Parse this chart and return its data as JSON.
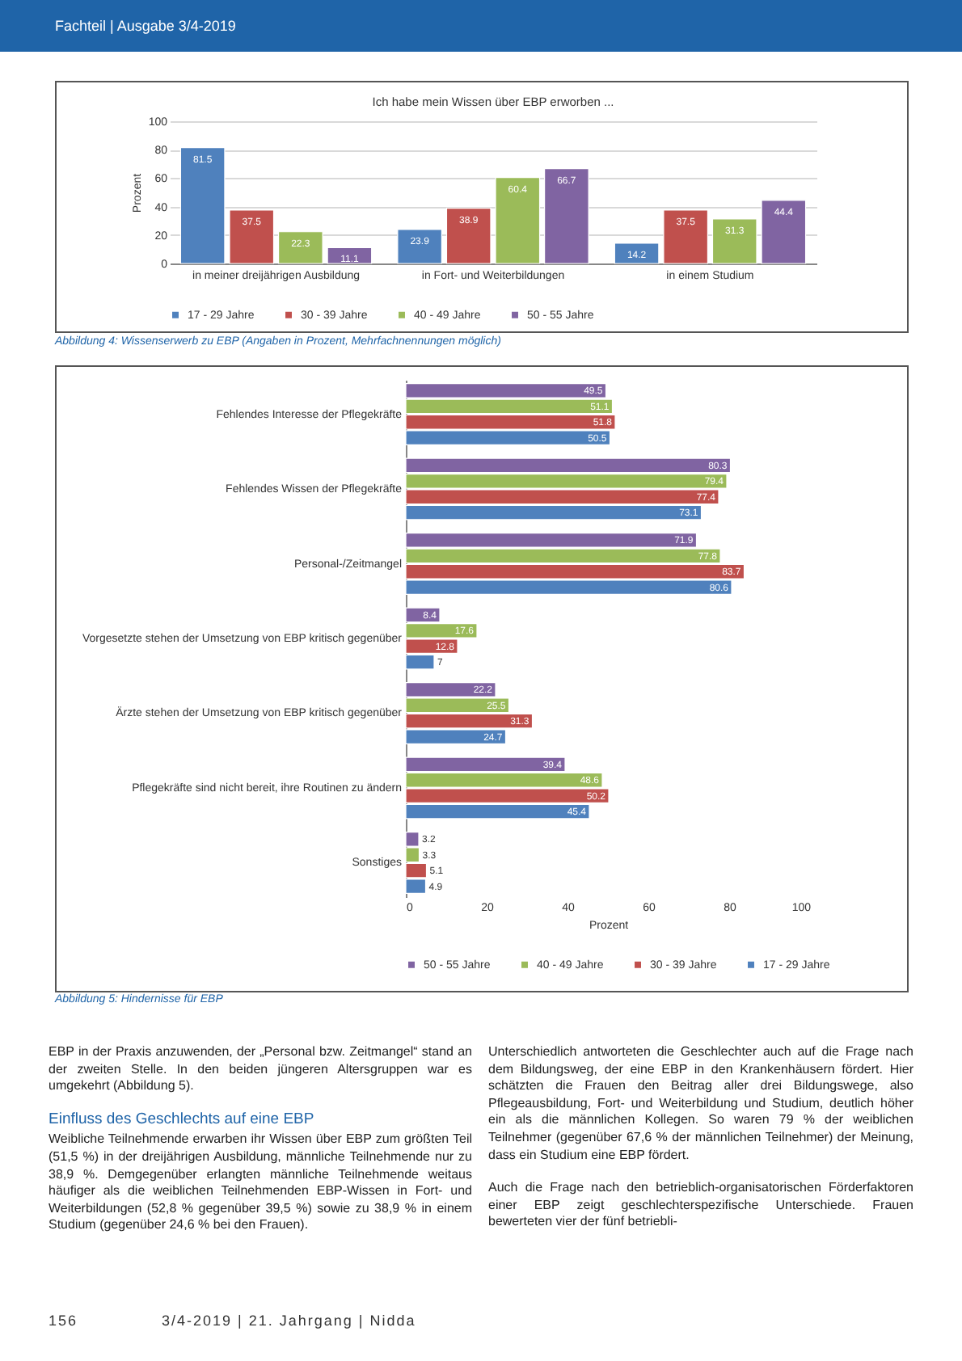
{
  "chart_data": [
    {
      "type": "bar",
      "title": "Ich habe mein Wissen über EBP erworben ...",
      "categories": [
        "in meiner dreijährigen Ausbildung",
        "in Fort- und Weiterbildungen",
        "in einem Studium"
      ],
      "ylabel": "Prozent",
      "ylim": [
        0,
        100
      ],
      "yticks": [
        0,
        20,
        40,
        60,
        80,
        100
      ],
      "grid": "y",
      "legend": "bottom",
      "data_labels": true,
      "series": [
        {
          "name": "17 - 29 Jahre",
          "color": "#4f81bd",
          "values": [
            81.5,
            23.9,
            14.2
          ]
        },
        {
          "name": "30 - 39 Jahre",
          "color": "#c0504d",
          "values": [
            37.5,
            38.9,
            37.5
          ]
        },
        {
          "name": "40 - 49 Jahre",
          "color": "#9bbb59",
          "values": [
            22.3,
            60.4,
            31.3
          ]
        },
        {
          "name": "50 - 55 Jahre",
          "color": "#8064a2",
          "values": [
            11.1,
            66.7,
            44.4
          ]
        }
      ],
      "annotations": [
        "Abbildung 4: Wissenserwerb zu EBP (Angaben in Prozent, Mehrfachnennungen möglich)"
      ]
    },
    {
      "type": "bar",
      "orientation": "horizontal",
      "categories": [
        "Fehlendes Interesse der Pflegekräfte",
        "Fehlendes Wissen der Pflegekräfte",
        "Personal-/Zeitmangel",
        "Vorgesetzte stehen der Umsetzung von EBP kritisch gegenüber",
        "Ärzte stehen der Umsetzung von EBP kritisch gegenüber",
        "Pflegekräfte sind nicht bereit, ihre Routinen zu ändern",
        "Sonstiges"
      ],
      "xlabel": "Prozent",
      "xlim": [
        0,
        100
      ],
      "xticks": [
        0,
        20,
        40,
        60,
        80,
        100
      ],
      "legend": "bottom",
      "data_labels": true,
      "series": [
        {
          "name": "50 - 55 Jahre",
          "color": "#8064a2",
          "values": [
            49.5,
            80.3,
            71.9,
            8.4,
            22.2,
            39.4,
            3.2
          ]
        },
        {
          "name": "40 - 49 Jahre",
          "color": "#9bbb59",
          "values": [
            51.1,
            79.4,
            77.8,
            17.6,
            25.5,
            48.6,
            3.3
          ]
        },
        {
          "name": "30 - 39 Jahre",
          "color": "#c0504d",
          "values": [
            51.8,
            77.4,
            83.7,
            12.8,
            31.3,
            50.2,
            5.1
          ]
        },
        {
          "name": "17 - 29 Jahre",
          "color": "#4f81bd",
          "values": [
            50.5,
            73.1,
            80.6,
            7.0,
            24.7,
            45.4,
            4.9
          ]
        }
      ],
      "annotations": [
        "Abbildung 5: Hindernisse für EBP"
      ]
    },
    {
      "type": "other",
      "annotations": [
        "Fachteil | Ausgabe 3/4-2019",
        "EBP in der Praxis anzuwenden, der „Personal bzw. Zeitmangel“ stand an der zweiten Stelle. In den beiden jüngeren Altersgruppen war es umgekehrt (Abbildung 5).",
        "Einfluss des Geschlechts auf eine EBP",
        "Weibliche Teilnehmende erwarben ihr Wissen über EBP zum größten Teil (51,5 %) in der dreijährigen Ausbildung, männliche Teilnehmende nur zu 38,9 %. Demgegenüber erlangten männliche Teilnehmende weitaus häufiger als die weiblichen Teilnehmenden EBP-Wissen in Fort- und Weiterbildungen (52,8 % gegenüber 39,5 %) sowie zu 38,9 % in einem Studium (gegenüber 24,6 % bei den Frauen).",
        "Unterschiedlich antworteten die Geschlechter auch auf die Frage nach dem Bildungsweg, der eine EBP in den Krankenhäusern fördert. Hier schätzten die Frauen den Beitrag aller drei Bildungswege, also Pflegeausbildung, Fort- und Weiterbildung und Studium, deutlich höher ein als die männlichen Kollegen. So waren 79 % der weiblichen Teilnehmer (gegenüber 67,6 % der männlichen Teilnehmer) der Meinung, dass ein Studium eine EBP fördert.",
        "Auch die Frage nach den betrieblich-organisatorischen Förderfaktoren einer EBP zeigt geschlechterspezifische Unterschiede. Frauen bewerteten vier der fünf betriebli-",
        "156",
        "3/4-2019 | 21. Jahrgang | Nidda"
      ]
    }
  ]
}
